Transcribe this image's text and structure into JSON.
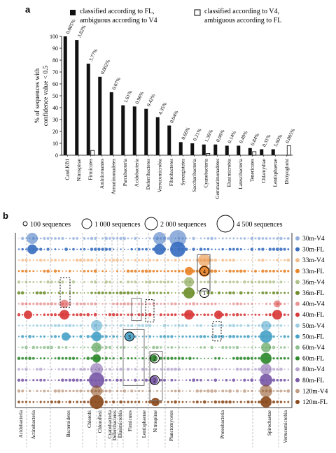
{
  "panel_a_label": "a",
  "panel_b_label": "b",
  "legend_a": {
    "fl": "classified according to FL,",
    "fl_2": "ambiguous according to V4",
    "v4": "classified according to V4,",
    "v4_2": "ambiguous according to FL"
  },
  "legend_b": [
    "100 sequences",
    "1 000 sequences",
    "2 000 sequences",
    "4 500 sequences"
  ],
  "colors": {
    "fl_bar": "#111111",
    "v4_bar": "#ffffff",
    "30m": "#3a6fc0",
    "33m": "#e8842a",
    "36m": "#6f8f2e",
    "40m": "#d83a3a",
    "50m": "#4aa3c8",
    "60m": "#2f8a2f",
    "80m": "#7a5aa8",
    "120m": "#8b4a1c"
  },
  "chart_data": [
    {
      "type": "bar",
      "ylabel": "% of sequences with confidence value < 0.5",
      "ylim": [
        0,
        100
      ],
      "yticks": [
        "0",
        "10",
        "20",
        "30",
        "40",
        "50",
        "60",
        "70",
        "80",
        "90",
        "100"
      ],
      "categories": [
        "Cand.KB1",
        "Nitrospirae",
        "Firmicutes",
        "Aminicenantes",
        "Armatimonadetes",
        "Parcubacteria",
        "Acidobacteria",
        "Deferribacteres",
        "Verrucomicrobia",
        "Fibrobacteres",
        "Synergistetes",
        "Saccharibacteria",
        "Cyanobacteria",
        "Gemmatimonadetes",
        "Elusimicrobia",
        "Latescibacteria",
        "Tenericutes",
        "Chlamydiae",
        "Lentisphaerae",
        "Dictyoglomi"
      ],
      "series": [
        {
          "name": "classified according to FL, ambiguous according to V4",
          "values": [
            100,
            97,
            77,
            66,
            53,
            42,
            41,
            39,
            32,
            25,
            11,
            10,
            9,
            9,
            8,
            8,
            6,
            5,
            5,
            0
          ]
        },
        {
          "name": "classified according to V4, ambiguous according to FL",
          "values": [
            0,
            0,
            4,
            0,
            0,
            0,
            0,
            0,
            0,
            0,
            0,
            0,
            1.5,
            0,
            0,
            0,
            3,
            0,
            0,
            8
          ]
        }
      ],
      "annotations": [
        "0.005%",
        "3.82%",
        "3.77%",
        "0.002%",
        "0.07%",
        "1.61%",
        "0.90%",
        "0.42%",
        "4.35%",
        "0.04%",
        "0.66%",
        "0.21%",
        "1.36%",
        "0.06%",
        "0.14%",
        "0.49%",
        "0.84%",
        "0.31%",
        "5.60%",
        "0.005%"
      ]
    },
    {
      "type": "scatter",
      "rows": [
        "30m-V4",
        "30m-FL",
        "33m-V4",
        "33m-FL",
        "36m-V4",
        "36m-FL",
        "40m-V4",
        "40m-FL",
        "50m-V4",
        "50m-FL",
        "60m-V4",
        "60m-FL",
        "80m-V4",
        "80m-FL",
        "120m-V4",
        "120m-FL"
      ],
      "groups": [
        "Acidobacteria",
        "Actinobacteria",
        "Bacteroidetes",
        "Chlorobi",
        "Chloroflexi",
        "Cyanobacteria",
        "Deferribacteres",
        "Elusimicrobia",
        "Firmicutes",
        "Lentisphaerae",
        "Nitrospirae",
        "Planctomycetes",
        "Proteobacteria",
        "Spirochaetae",
        "Verrucomicrobia"
      ],
      "marker_numbers": [
        "1",
        "2",
        "3",
        "4"
      ],
      "size_legend": [
        100,
        1000,
        2000,
        4500
      ]
    }
  ]
}
